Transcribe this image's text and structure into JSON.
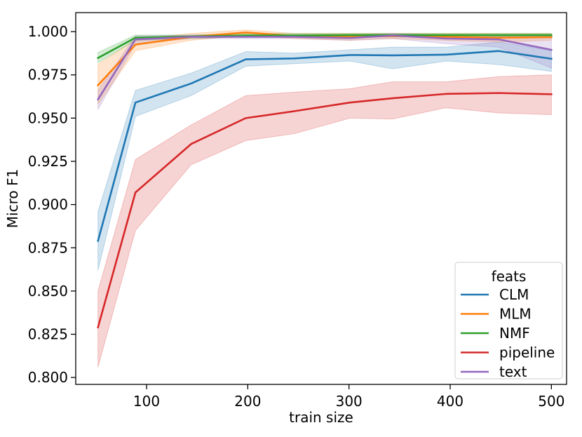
{
  "chart_data": {
    "type": "line",
    "xlabel": "train size",
    "ylabel": "Micro F1",
    "xlim": [
      30,
      515
    ],
    "ylim": [
      0.796,
      1.011
    ],
    "x_ticks": [
      100,
      200,
      300,
      400,
      500
    ],
    "y_ticks": [
      0.8,
      0.825,
      0.85,
      0.875,
      0.9,
      0.925,
      0.95,
      0.975,
      1.0
    ],
    "legend": {
      "title": "feats",
      "position": "lower right"
    },
    "series": [
      {
        "name": "CLM",
        "color": "#1f77b4",
        "x": [
          52,
          89,
          144,
          198,
          246,
          301,
          343,
          396,
          448,
          500
        ],
        "y": [
          0.879,
          0.959,
          0.97,
          0.984,
          0.9845,
          0.9865,
          0.9863,
          0.9867,
          0.9888,
          0.9843
        ],
        "lower": [
          0.862,
          0.951,
          0.963,
          0.98,
          0.9815,
          0.983,
          0.9785,
          0.983,
          0.981,
          0.977
        ],
        "upper": [
          0.896,
          0.966,
          0.976,
          0.9885,
          0.9875,
          0.9895,
          0.991,
          0.991,
          0.994,
          0.989
        ]
      },
      {
        "name": "MLM",
        "color": "#ff7f0e",
        "x": [
          52,
          89,
          144,
          198,
          246,
          301,
          343,
          396,
          448,
          500
        ],
        "y": [
          0.969,
          0.9925,
          0.997,
          0.9995,
          0.9975,
          0.997,
          0.9975,
          0.997,
          0.9965,
          0.9968
        ],
        "lower": [
          0.958,
          0.989,
          0.995,
          0.998,
          0.996,
          0.995,
          0.996,
          0.995,
          0.994,
          0.995
        ],
        "upper": [
          0.981,
          0.9955,
          0.999,
          1.001,
          0.999,
          0.999,
          0.999,
          0.999,
          0.999,
          0.999
        ]
      },
      {
        "name": "NMF",
        "color": "#2ca02c",
        "x": [
          52,
          89,
          144,
          198,
          246,
          301,
          343,
          396,
          448,
          500
        ],
        "y": [
          0.9848,
          0.9965,
          0.9972,
          0.9978,
          0.9978,
          0.998,
          0.998,
          0.998,
          0.998,
          0.998
        ],
        "lower": [
          0.982,
          0.995,
          0.996,
          0.997,
          0.997,
          0.997,
          0.997,
          0.997,
          0.997,
          0.997
        ],
        "upper": [
          0.988,
          0.998,
          0.998,
          0.999,
          0.999,
          0.999,
          0.999,
          0.999,
          0.999,
          0.999
        ]
      },
      {
        "name": "pipeline",
        "color": "#d62728",
        "x": [
          52,
          89,
          144,
          198,
          246,
          301,
          343,
          396,
          448,
          500
        ],
        "y": [
          0.829,
          0.907,
          0.935,
          0.95,
          0.954,
          0.959,
          0.9615,
          0.964,
          0.9645,
          0.9638
        ],
        "lower": [
          0.806,
          0.885,
          0.923,
          0.937,
          0.941,
          0.95,
          0.9495,
          0.956,
          0.953,
          0.952
        ],
        "upper": [
          0.85,
          0.926,
          0.946,
          0.963,
          0.965,
          0.967,
          0.971,
          0.971,
          0.974,
          0.975
        ]
      },
      {
        "name": "text",
        "color": "#9467bd",
        "x": [
          52,
          89,
          144,
          198,
          246,
          301,
          343,
          396,
          448,
          500
        ],
        "y": [
          0.9608,
          0.9955,
          0.997,
          0.997,
          0.997,
          0.9963,
          0.9978,
          0.996,
          0.9955,
          0.9895
        ],
        "lower": [
          0.955,
          0.993,
          0.996,
          0.996,
          0.996,
          0.995,
          0.996,
          0.993,
          0.991,
          0.979
        ],
        "upper": [
          0.966,
          0.9975,
          0.998,
          0.998,
          0.998,
          0.998,
          0.999,
          0.998,
          0.998,
          0.998
        ]
      }
    ]
  }
}
